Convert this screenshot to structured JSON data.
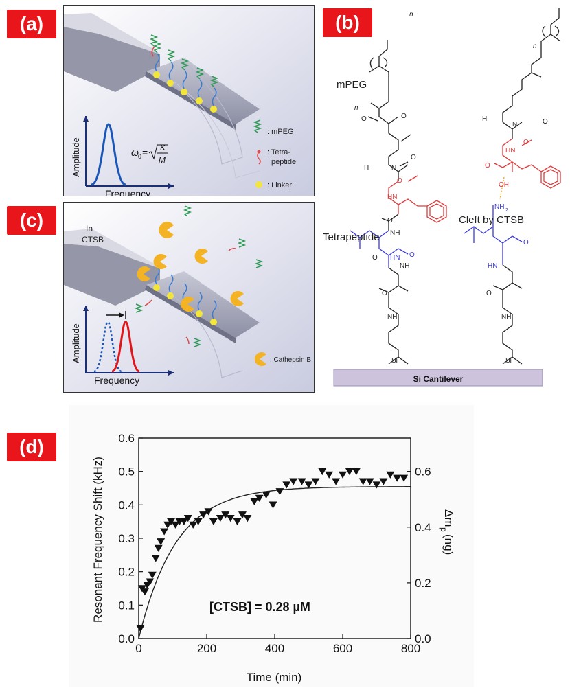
{
  "panels": {
    "a": "(a)",
    "b": "(b)",
    "c": "(c)",
    "d": "(d)"
  },
  "panel_a": {
    "amplitude": "Amplitude",
    "frequency": "Frequency",
    "formula_lhs": "ω",
    "formula_sub": "0",
    "formula_num": "K",
    "formula_den": "M",
    "legend": [
      {
        "icon": "mpeg-icon",
        "label": ": mPEG"
      },
      {
        "icon": "tetrapeptide-icon",
        "label": ": Tetra-"
      },
      {
        "icon": "",
        "label": "peptide"
      },
      {
        "icon": "linker-icon",
        "label": ": Linker"
      }
    ]
  },
  "panel_c": {
    "in_label": "In",
    "ctsb_label": "CTSB",
    "amplitude": "Amplitude",
    "frequency": "Frequency",
    "legend": ": Cathepsin B"
  },
  "panel_b": {
    "mpeg": "mPEG",
    "tetrapeptide": "Tetrapeptide",
    "cleft": "Cleft by CTSB",
    "cantilever": "Si Cantilever",
    "n": "n",
    "O": "O",
    "H": "H",
    "N": "N",
    "HN": "HN",
    "NH": "NH",
    "NH2": "NH",
    "NH2_sub": "2",
    "OH": "OH",
    "Si": "Si"
  },
  "chart_data": {
    "type": "scatter",
    "annotation": "[CTSB] = 0.28 µM",
    "xlabel": "Time (min)",
    "ylabel": "Resonant Frequency Shift (kHz)",
    "y2label": "Δm",
    "y2label_sub": "p",
    "y2label_unit": "(ng)",
    "xlim": [
      0,
      800
    ],
    "ylim": [
      0,
      0.6
    ],
    "y2lim": [
      0,
      0.72
    ],
    "xticks": [
      "0",
      "200",
      "400",
      "600",
      "800"
    ],
    "yticks": [
      "0.0",
      "0.1",
      "0.2",
      "0.3",
      "0.4",
      "0.5",
      "0.6"
    ],
    "y2ticks": [
      "0.0",
      "0.2",
      "0.4",
      "0.6"
    ],
    "x": [
      5,
      10,
      18,
      25,
      33,
      40,
      50,
      58,
      65,
      75,
      85,
      95,
      108,
      120,
      133,
      145,
      160,
      175,
      190,
      205,
      220,
      240,
      255,
      270,
      290,
      305,
      320,
      340,
      355,
      375,
      395,
      415,
      435,
      455,
      480,
      500,
      520,
      540,
      560,
      580,
      600,
      620,
      640,
      660,
      680,
      700,
      720,
      740,
      760,
      780
    ],
    "y": [
      0.03,
      0.15,
      0.14,
      0.16,
      0.17,
      0.19,
      0.24,
      0.27,
      0.29,
      0.32,
      0.34,
      0.35,
      0.34,
      0.35,
      0.35,
      0.36,
      0.34,
      0.35,
      0.37,
      0.38,
      0.35,
      0.36,
      0.37,
      0.36,
      0.35,
      0.37,
      0.36,
      0.41,
      0.42,
      0.43,
      0.4,
      0.44,
      0.46,
      0.47,
      0.47,
      0.46,
      0.47,
      0.5,
      0.49,
      0.47,
      0.49,
      0.5,
      0.5,
      0.47,
      0.47,
      0.46,
      0.47,
      0.49,
      0.48,
      0.48
    ],
    "fit": {
      "type": "exponential",
      "plateau": 0.455,
      "tau_min": 110
    }
  }
}
